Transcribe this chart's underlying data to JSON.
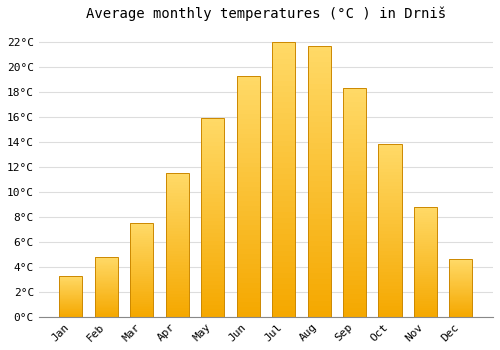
{
  "title": "Average monthly temperatures (°C ) in Drniš",
  "months": [
    "Jan",
    "Feb",
    "Mar",
    "Apr",
    "May",
    "Jun",
    "Jul",
    "Aug",
    "Sep",
    "Oct",
    "Nov",
    "Dec"
  ],
  "values": [
    3.3,
    4.8,
    7.5,
    11.5,
    15.9,
    19.3,
    22.0,
    21.7,
    18.3,
    13.8,
    8.8,
    4.6
  ],
  "bar_color_bottom": "#F5A800",
  "bar_color_top": "#FFD966",
  "bar_edge_color": "#CC8800",
  "ylim": [
    0,
    23
  ],
  "ytick_step": 2,
  "background_color": "#FFFFFF",
  "grid_color": "#DDDDDD",
  "title_fontsize": 10,
  "tick_fontsize": 8,
  "font_family": "monospace"
}
